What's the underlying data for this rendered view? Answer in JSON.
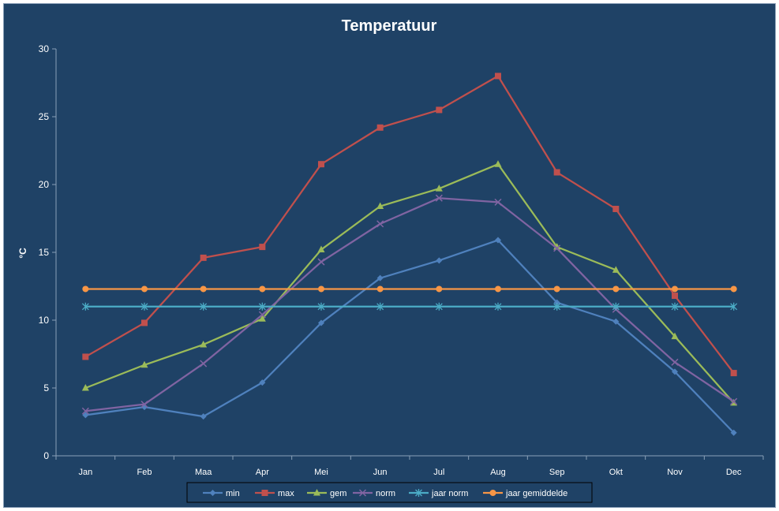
{
  "chart_data": {
    "type": "line",
    "title": "Temperatuur",
    "xlabel": "",
    "ylabel": "°C",
    "ylim": [
      0,
      30
    ],
    "yticks": [
      0,
      5,
      10,
      15,
      20,
      25,
      30
    ],
    "grid": false,
    "legend_position": "bottom",
    "categories": [
      "Jan",
      "Feb",
      "Maa",
      "Apr",
      "Mei",
      "Jun",
      "Jul",
      "Aug",
      "Sep",
      "Okt",
      "Nov",
      "Dec"
    ],
    "series": [
      {
        "name": "min",
        "color": "#4f81bd",
        "marker": "diamond",
        "values": [
          3.0,
          3.6,
          2.9,
          5.4,
          9.8,
          13.1,
          14.4,
          15.9,
          11.3,
          9.9,
          6.2,
          1.7
        ]
      },
      {
        "name": "max",
        "color": "#c0504d",
        "marker": "square",
        "values": [
          7.3,
          9.8,
          14.6,
          15.4,
          21.5,
          24.2,
          25.5,
          28.0,
          20.9,
          18.2,
          11.8,
          6.1
        ]
      },
      {
        "name": "gem",
        "color": "#9bbb59",
        "marker": "triangle",
        "values": [
          5.0,
          6.7,
          8.2,
          10.1,
          15.2,
          18.4,
          19.7,
          21.5,
          15.4,
          13.7,
          8.8,
          3.9
        ]
      },
      {
        "name": "norm",
        "color": "#8064a2",
        "marker": "x",
        "values": [
          3.3,
          3.8,
          6.8,
          10.4,
          14.3,
          17.1,
          19.0,
          18.7,
          15.3,
          10.8,
          6.9,
          4.0
        ]
      },
      {
        "name": "jaar norm",
        "color": "#4bacc6",
        "marker": "star",
        "values": [
          11.0,
          11.0,
          11.0,
          11.0,
          11.0,
          11.0,
          11.0,
          11.0,
          11.0,
          11.0,
          11.0,
          11.0
        ]
      },
      {
        "name": "jaar gemiddelde",
        "color": "#f79646",
        "marker": "circle",
        "values": [
          12.3,
          12.3,
          12.3,
          12.3,
          12.3,
          12.3,
          12.3,
          12.3,
          12.3,
          12.3,
          12.3,
          12.3
        ]
      }
    ]
  }
}
